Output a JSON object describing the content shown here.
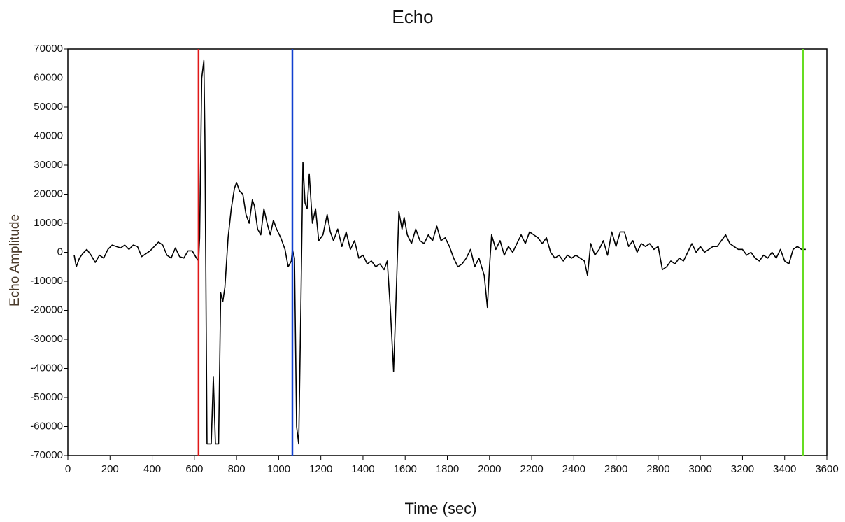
{
  "chart_data": {
    "type": "line",
    "title": "Echo",
    "x_label": "Time (sec)",
    "y_label": "Echo Amplitude",
    "xlim": [
      0,
      3600
    ],
    "xticks": [
      0,
      200,
      400,
      600,
      800,
      1000,
      1200,
      1400,
      1600,
      1800,
      2000,
      2200,
      2400,
      2600,
      2800,
      3000,
      3200,
      3400,
      3600
    ],
    "ylim": [
      -70000,
      70000
    ],
    "yticks": [
      -70000,
      -60000,
      -50000,
      -40000,
      -30000,
      -20000,
      -10000,
      0,
      10000,
      20000,
      30000,
      40000,
      50000,
      60000,
      70000
    ],
    "cursors": [
      {
        "x": 620,
        "color": "#e01818"
      },
      {
        "x": 1065,
        "color": "#1040d0"
      },
      {
        "x": 3487,
        "color": "#66dd22"
      }
    ],
    "series": [
      {
        "color": "#000000",
        "x": [
          30,
          40,
          55,
          70,
          90,
          110,
          130,
          150,
          170,
          190,
          210,
          230,
          250,
          270,
          290,
          310,
          330,
          350,
          370,
          390,
          410,
          430,
          450,
          470,
          490,
          510,
          530,
          550,
          570,
          590,
          610,
          620,
          625,
          635,
          645,
          650,
          660,
          680,
          690,
          700,
          715,
          725,
          735,
          745,
          760,
          775,
          790,
          800,
          815,
          830,
          845,
          860,
          875,
          885,
          900,
          915,
          930,
          945,
          960,
          975,
          990,
          1010,
          1030,
          1045,
          1060,
          1065,
          1075,
          1085,
          1095,
          1105,
          1115,
          1125,
          1135,
          1145,
          1160,
          1175,
          1190,
          1210,
          1230,
          1245,
          1260,
          1280,
          1300,
          1320,
          1340,
          1360,
          1380,
          1400,
          1420,
          1440,
          1460,
          1480,
          1500,
          1515,
          1530,
          1545,
          1555,
          1570,
          1585,
          1595,
          1610,
          1630,
          1650,
          1670,
          1690,
          1710,
          1730,
          1750,
          1770,
          1790,
          1810,
          1830,
          1850,
          1870,
          1890,
          1910,
          1930,
          1950,
          1975,
          1990,
          2000,
          2010,
          2030,
          2050,
          2070,
          2090,
          2110,
          2130,
          2150,
          2170,
          2190,
          2210,
          2230,
          2250,
          2270,
          2290,
          2310,
          2330,
          2350,
          2370,
          2390,
          2410,
          2430,
          2450,
          2465,
          2480,
          2500,
          2520,
          2540,
          2560,
          2580,
          2600,
          2620,
          2640,
          2660,
          2680,
          2700,
          2720,
          2740,
          2760,
          2780,
          2800,
          2820,
          2840,
          2860,
          2880,
          2900,
          2920,
          2940,
          2960,
          2980,
          3000,
          3020,
          3040,
          3060,
          3080,
          3100,
          3120,
          3140,
          3160,
          3180,
          3200,
          3220,
          3240,
          3260,
          3280,
          3300,
          3320,
          3340,
          3360,
          3380,
          3400,
          3420,
          3440,
          3460,
          3480,
          3500
        ],
        "values": [
          -1000,
          -5000,
          -2000,
          -500,
          1000,
          -1000,
          -3500,
          -1000,
          -2000,
          1000,
          2500,
          2000,
          1500,
          2500,
          1000,
          2500,
          2000,
          -1500,
          -500,
          500,
          2000,
          3500,
          2500,
          -1000,
          -2000,
          1500,
          -1500,
          -2000,
          500,
          500,
          -2000,
          -3000,
          5000,
          60000,
          66000,
          40000,
          -66000,
          -66000,
          -43000,
          -66000,
          -66000,
          -14000,
          -17000,
          -12000,
          5000,
          15000,
          22000,
          24000,
          21000,
          20000,
          13000,
          10000,
          18000,
          16000,
          8000,
          6000,
          15000,
          10000,
          6000,
          11000,
          8000,
          5000,
          1000,
          -5000,
          -3000,
          1000,
          -2000,
          -60000,
          -66000,
          -20000,
          31000,
          17000,
          15000,
          27000,
          10000,
          15000,
          4000,
          6000,
          13000,
          7000,
          4000,
          8000,
          2000,
          7000,
          1000,
          4000,
          -2000,
          -1000,
          -4000,
          -3000,
          -5000,
          -4000,
          -6000,
          -3000,
          -20000,
          -41000,
          -20000,
          14000,
          8000,
          12000,
          6000,
          3000,
          8000,
          4000,
          3000,
          6000,
          4000,
          9000,
          4000,
          5000,
          2000,
          -2000,
          -5000,
          -4000,
          -2000,
          1000,
          -5000,
          -2000,
          -8000,
          -19000,
          -5000,
          6000,
          1000,
          4000,
          -1000,
          2000,
          0,
          3000,
          6000,
          3000,
          7000,
          6000,
          5000,
          3000,
          5000,
          0,
          -2000,
          -1000,
          -3000,
          -1000,
          -2000,
          -1000,
          -2000,
          -3000,
          -8000,
          3000,
          -1000,
          1000,
          4000,
          -1000,
          7000,
          2000,
          7000,
          7000,
          2000,
          4000,
          0,
          3000,
          2000,
          3000,
          1000,
          2000,
          -6000,
          -5000,
          -3000,
          -4000,
          -2000,
          -3000,
          0,
          3000,
          0,
          2000,
          0,
          1000,
          2000,
          2000,
          4000,
          6000,
          3000,
          2000,
          1000,
          1000,
          -1000,
          0,
          -2000,
          -3000,
          -1000,
          -2000,
          0,
          -2000,
          1000,
          -3000,
          -4000,
          1000,
          2000,
          1000,
          1000
        ]
      }
    ]
  }
}
